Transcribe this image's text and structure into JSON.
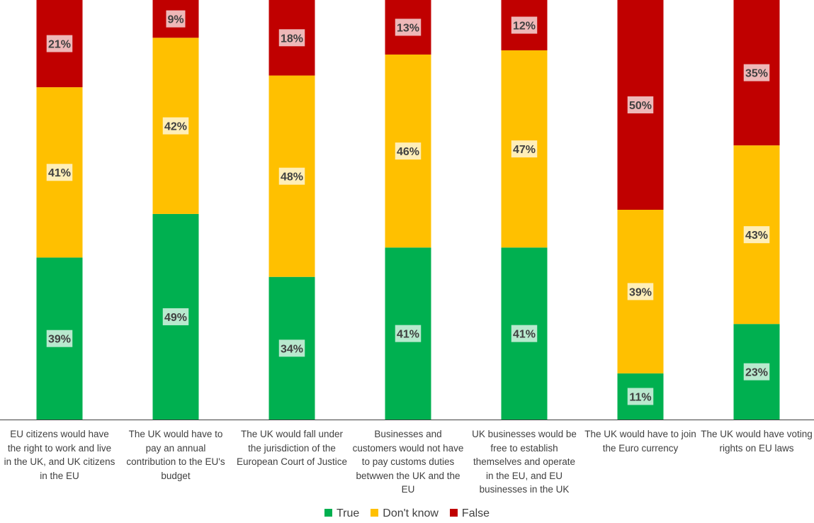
{
  "chart_data": {
    "type": "bar",
    "stacked": true,
    "normalized": true,
    "categories": [
      "EU citizens would have the right to work and live in the UK, and UK citizens in the EU",
      "The UK would have to pay an annual contribution to the EU's budget",
      "The UK would fall under the jurisdiction of the European Court of Justice",
      "Businesses and customers would not have to pay customs duties betwwen the UK and the EU",
      "UK businesses would be free to establish themselves and operate in the EU, and EU businesses in the UK",
      "The UK would have to join the Euro currency",
      "The UK would have voting rights on EU laws"
    ],
    "series": [
      {
        "name": "True",
        "color": "#00b050",
        "values": [
          39,
          49,
          34,
          41,
          41,
          11,
          23
        ]
      },
      {
        "name": "Don't know",
        "color": "#ffc000",
        "values": [
          41,
          42,
          48,
          46,
          47,
          39,
          43
        ]
      },
      {
        "name": "False",
        "color": "#c00000",
        "values": [
          21,
          9,
          18,
          13,
          12,
          50,
          35
        ]
      }
    ],
    "value_format": "percent",
    "legend_position": "bottom",
    "grid": false
  }
}
